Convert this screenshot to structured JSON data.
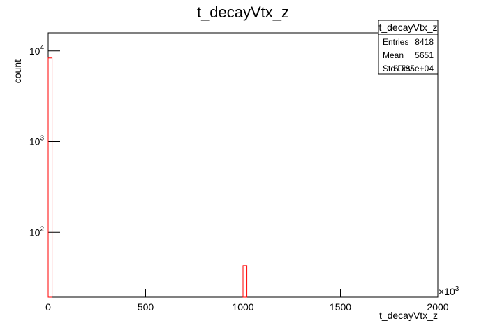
{
  "chart_data": {
    "type": "histogram",
    "title": "t_decayVtx_z",
    "bins": [
      0,
      20,
      1000,
      1020,
      2000
    ],
    "values": [
      8375,
      0,
      43,
      0
    ],
    "color": "#ff0000",
    "xlim": [
      0,
      2000
    ],
    "xticks": [
      0,
      500,
      1000,
      1500,
      2000
    ],
    "x_scale_base": "×10",
    "x_scale_exponent": "3",
    "ylim": [
      19.3,
      15800
    ],
    "log_y": true,
    "yticks": [
      {
        "value": 100,
        "label": "10",
        "exponent": "2"
      },
      {
        "value": 1000,
        "label": "10",
        "exponent": "3"
      },
      {
        "value": 10000,
        "label": "10",
        "exponent": "4"
      }
    ],
    "xlabel": "t_decayVtx_z",
    "ylabel": "count",
    "stats": {
      "title": "t_decayVtx_z",
      "rows": [
        [
          "Entries",
          "8418"
        ],
        [
          "Mean",
          "5651"
        ],
        [
          "Std Dev",
          "6.785e+04"
        ]
      ]
    }
  }
}
